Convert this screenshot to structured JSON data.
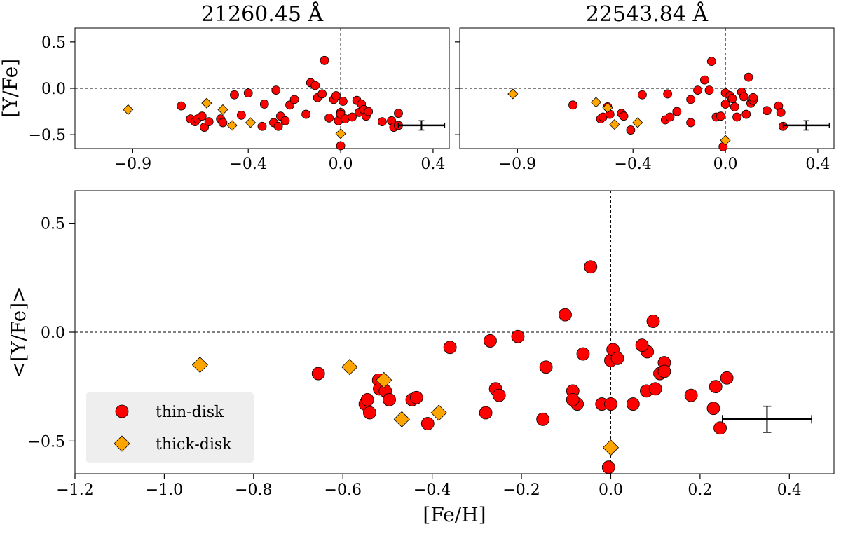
{
  "colors": {
    "thin_disk": "#ff0000",
    "thick_disk": "#ffa500",
    "edge": "#000000",
    "legend_bg": "#eeeeee"
  },
  "chart_data": [
    {
      "id": "top-left",
      "type": "scatter",
      "title": "21260.45 Å",
      "xlabel": "",
      "ylabel": "[Y/Fe]",
      "xlim": [
        -1.15,
        0.47
      ],
      "ylim": [
        -0.65,
        0.65
      ],
      "xticks": [
        -0.9,
        -0.4,
        0.0,
        0.4
      ],
      "xtick_labels": [
        "−0.9",
        "−0.4",
        "0.0",
        "0.4"
      ],
      "yticks": [
        0.5,
        0.0,
        -0.5
      ],
      "ytick_labels": [
        "0.5",
        "0.0",
        "−0.5"
      ],
      "reference_lines": {
        "x": 0.0,
        "y": 0.0
      },
      "error_bar": {
        "x": 0.35,
        "y": -0.4,
        "xerr": 0.1,
        "yerr": 0.05
      },
      "series": [
        {
          "name": "thin-disk",
          "marker": "circle",
          "x": [
            -0.69,
            -0.65,
            -0.63,
            -0.62,
            -0.6,
            -0.59,
            -0.57,
            -0.52,
            -0.51,
            -0.46,
            -0.43,
            -0.4,
            -0.34,
            -0.33,
            -0.29,
            -0.28,
            -0.27,
            -0.26,
            -0.24,
            -0.22,
            -0.2,
            -0.15,
            -0.13,
            -0.11,
            -0.1,
            -0.08,
            -0.07,
            -0.05,
            -0.03,
            -0.02,
            -0.01,
            0.0,
            0.0,
            0.0,
            0.01,
            0.02,
            0.05,
            0.07,
            0.08,
            0.09,
            0.1,
            0.11,
            0.12,
            0.18,
            0.22,
            0.23,
            0.25,
            0.25
          ],
          "y": [
            -0.19,
            -0.33,
            -0.36,
            -0.33,
            -0.3,
            -0.42,
            -0.36,
            -0.33,
            -0.37,
            -0.07,
            -0.29,
            -0.05,
            -0.41,
            -0.17,
            -0.37,
            -0.02,
            -0.41,
            -0.3,
            -0.35,
            -0.18,
            -0.12,
            -0.28,
            0.06,
            0.03,
            -0.1,
            -0.06,
            0.3,
            -0.32,
            -0.12,
            -0.08,
            -0.35,
            -0.62,
            -0.26,
            -0.28,
            -0.14,
            -0.33,
            -0.31,
            -0.13,
            -0.26,
            -0.17,
            -0.23,
            -0.3,
            -0.25,
            -0.36,
            -0.35,
            -0.42,
            -0.27,
            -0.4
          ]
        },
        {
          "name": "thick-disk",
          "marker": "diamond",
          "x": [
            -0.92,
            -0.58,
            -0.51,
            -0.47,
            -0.39,
            0.0
          ],
          "y": [
            -0.23,
            -0.16,
            -0.23,
            -0.4,
            -0.37,
            -0.49
          ]
        }
      ]
    },
    {
      "id": "top-right",
      "type": "scatter",
      "title": "22543.84 Å",
      "xlabel": "",
      "ylabel": "",
      "xlim": [
        -1.15,
        0.47
      ],
      "ylim": [
        -0.65,
        0.65
      ],
      "xticks": [
        -0.9,
        -0.4,
        0.0,
        0.4
      ],
      "xtick_labels": [
        "−0.9",
        "−0.4",
        "0.0",
        "0.4"
      ],
      "yticks": [
        0.5,
        0.0,
        -0.5
      ],
      "ytick_labels": [
        "",
        "",
        ""
      ],
      "reference_lines": {
        "x": 0.0,
        "y": 0.0
      },
      "error_bar": {
        "x": 0.35,
        "y": -0.4,
        "xerr": 0.1,
        "yerr": 0.05
      },
      "series": [
        {
          "name": "thin-disk",
          "marker": "circle",
          "x": [
            -0.66,
            -0.54,
            -0.53,
            -0.51,
            -0.5,
            -0.45,
            -0.44,
            -0.41,
            -0.36,
            -0.26,
            -0.21,
            -0.25,
            -0.24,
            -0.15,
            -0.15,
            -0.12,
            -0.09,
            -0.07,
            -0.06,
            -0.04,
            -0.02,
            -0.01,
            0.0,
            0.0,
            0.02,
            0.03,
            0.04,
            0.05,
            0.07,
            0.08,
            0.09,
            0.1,
            0.11,
            0.12,
            0.12,
            0.18,
            0.23,
            0.24,
            0.25
          ],
          "y": [
            -0.18,
            -0.33,
            -0.31,
            -0.2,
            -0.28,
            -0.27,
            -0.3,
            -0.45,
            -0.07,
            -0.34,
            -0.25,
            -0.06,
            -0.31,
            -0.37,
            -0.12,
            -0.02,
            0.09,
            -0.02,
            0.29,
            -0.31,
            -0.3,
            -0.63,
            -0.17,
            -0.05,
            -0.08,
            -0.11,
            -0.2,
            -0.31,
            -0.04,
            -0.09,
            -0.28,
            0.12,
            -0.16,
            -0.13,
            -0.1,
            -0.24,
            -0.19,
            -0.26,
            -0.41
          ]
        },
        {
          "name": "thick-disk",
          "marker": "diamond",
          "x": [
            -0.92,
            -0.56,
            -0.51,
            -0.48,
            -0.38,
            0.0
          ],
          "y": [
            -0.06,
            -0.15,
            -0.21,
            -0.39,
            -0.37,
            -0.56
          ]
        }
      ]
    },
    {
      "id": "bottom",
      "type": "scatter",
      "title": "",
      "xlabel": "[Fe/H]",
      "ylabel": "<[Y/Fe]>",
      "xlim": [
        -1.2,
        0.5
      ],
      "ylim": [
        -0.65,
        0.65
      ],
      "xticks": [
        -1.2,
        -1.0,
        -0.8,
        -0.6,
        -0.4,
        -0.2,
        0.0,
        0.2,
        0.4
      ],
      "xtick_labels": [
        "−1.2",
        "−1.0",
        "−0.8",
        "−0.6",
        "−0.4",
        "−0.2",
        "0.0",
        "0.2",
        "0.4"
      ],
      "yticks": [
        0.5,
        0.0,
        -0.5
      ],
      "ytick_labels": [
        "0.5",
        "0.0",
        "−0.5"
      ],
      "reference_lines": {
        "x": 0.0,
        "y": 0.0
      },
      "error_bar": {
        "x": 0.35,
        "y": -0.4,
        "xerr": 0.1,
        "yerr": 0.06
      },
      "legend": {
        "position": "bottom-left",
        "entries": [
          {
            "label": "thin-disk",
            "marker": "circle"
          },
          {
            "label": "thick-disk",
            "marker": "diamond"
          }
        ]
      },
      "series": [
        {
          "name": "thin-disk",
          "marker": "circle",
          "x": [
            -0.655,
            -0.55,
            -0.545,
            -0.54,
            -0.52,
            -0.518,
            -0.505,
            -0.496,
            -0.445,
            -0.435,
            -0.41,
            -0.36,
            -0.28,
            -0.27,
            -0.258,
            -0.25,
            -0.208,
            -0.152,
            -0.145,
            -0.102,
            -0.085,
            -0.075,
            -0.085,
            -0.062,
            -0.045,
            -0.02,
            -0.005,
            0.0,
            0.0,
            0.005,
            0.015,
            0.05,
            0.08,
            0.082,
            0.095,
            0.11,
            0.12,
            0.12,
            0.18,
            0.235,
            0.23,
            0.245,
            0.26,
            0.07,
            0.1
          ],
          "y": [
            -0.19,
            -0.33,
            -0.31,
            -0.37,
            -0.22,
            -0.26,
            -0.27,
            -0.31,
            -0.31,
            -0.3,
            -0.42,
            -0.07,
            -0.37,
            -0.04,
            -0.26,
            -0.29,
            -0.02,
            -0.4,
            -0.16,
            0.08,
            -0.27,
            -0.33,
            -0.31,
            -0.1,
            0.3,
            -0.33,
            -0.62,
            -0.33,
            -0.13,
            -0.08,
            -0.12,
            -0.33,
            -0.27,
            -0.09,
            0.05,
            -0.19,
            -0.14,
            -0.18,
            -0.29,
            -0.25,
            -0.35,
            -0.44,
            -0.21,
            -0.06,
            -0.26
          ]
        },
        {
          "name": "thick-disk",
          "marker": "diamond",
          "x": [
            -0.92,
            -0.585,
            -0.508,
            -0.468,
            -0.385,
            0.0
          ],
          "y": [
            -0.15,
            -0.16,
            -0.22,
            -0.4,
            -0.37,
            -0.53
          ]
        }
      ]
    }
  ]
}
